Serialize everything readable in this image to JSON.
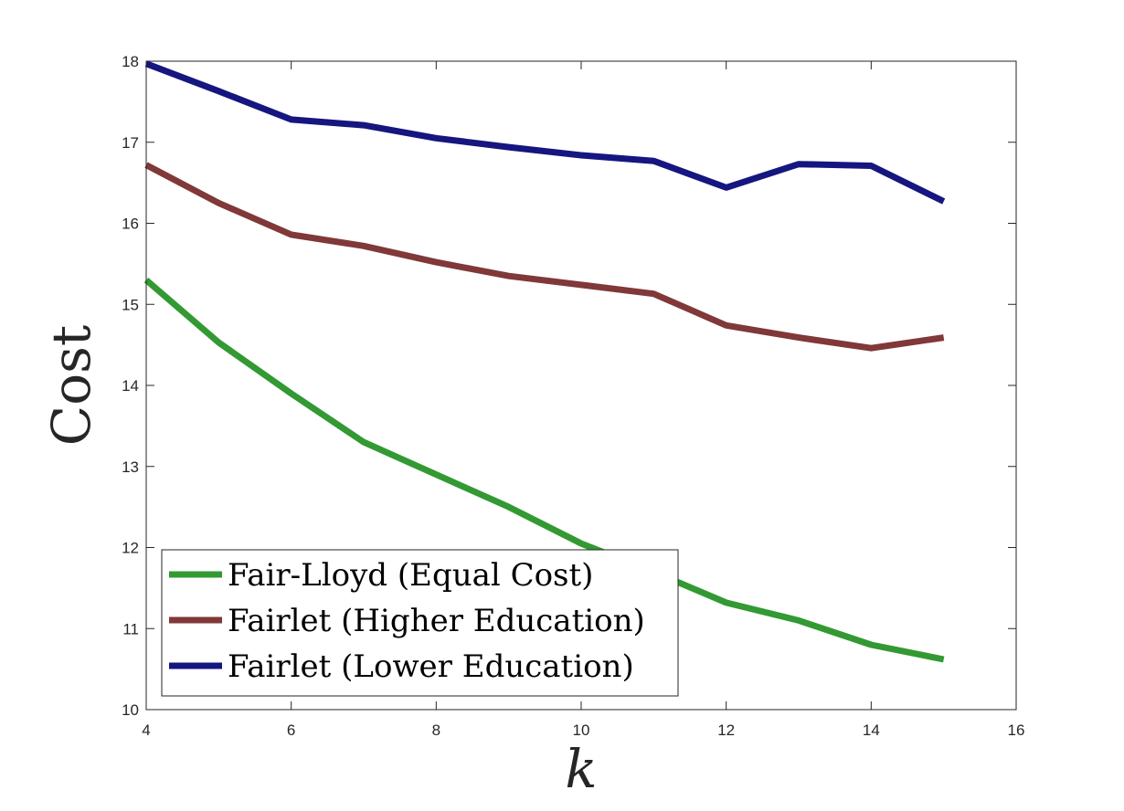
{
  "chart_data": {
    "type": "line",
    "title": "",
    "xlabel": "k",
    "ylabel": "Cost",
    "xlim": [
      4,
      16
    ],
    "ylim": [
      10,
      18
    ],
    "xticks": [
      4,
      6,
      8,
      10,
      12,
      14,
      16
    ],
    "yticks": [
      10,
      11,
      12,
      13,
      14,
      15,
      16,
      17,
      18
    ],
    "grid": false,
    "legend_position": "bottom-left",
    "x": [
      4,
      5,
      6,
      7,
      8,
      9,
      10,
      11,
      12,
      13,
      14,
      15
    ],
    "series": [
      {
        "name": "Fair-Lloyd (Equal Cost)",
        "color": "#339933",
        "values": [
          15.3,
          14.53,
          13.9,
          13.3,
          12.9,
          12.5,
          12.05,
          11.7,
          11.32,
          11.1,
          10.8,
          10.62
        ]
      },
      {
        "name": "Fairlet (Higher Education)",
        "color": "#803838",
        "values": [
          16.72,
          16.25,
          15.86,
          15.72,
          15.52,
          15.35,
          15.24,
          15.13,
          14.74,
          14.59,
          14.46,
          14.59
        ]
      },
      {
        "name": "Fairlet (Lower Education)",
        "color": "#15167f",
        "values": [
          17.97,
          17.63,
          17.28,
          17.21,
          17.05,
          16.94,
          16.84,
          16.77,
          16.44,
          16.73,
          16.71,
          16.27
        ]
      }
    ]
  }
}
